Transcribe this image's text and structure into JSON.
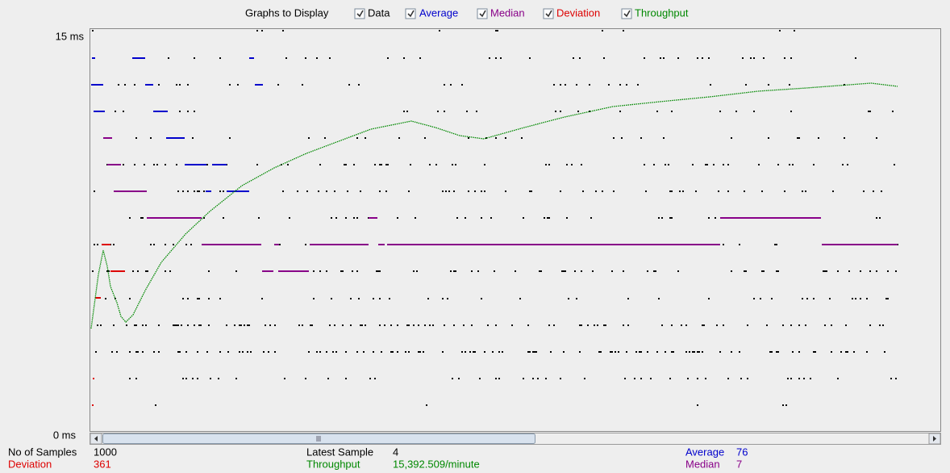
{
  "legend": {
    "title": "Graphs to Display",
    "items": [
      "Data",
      "Average",
      "Median",
      "Deviation",
      "Throughput"
    ]
  },
  "axis": {
    "top": "15 ms",
    "bottom": "0 ms"
  },
  "stats": {
    "samples_label": "No of Samples",
    "samples": "1000",
    "deviation_label": "Deviation",
    "deviation": "361",
    "latest_label": "Latest Sample",
    "latest": "4",
    "throughput_label": "Throughput",
    "throughput": "15,392.509/minute",
    "average_label": "Average",
    "average": "76",
    "median_label": "Median",
    "median": "7"
  }
}
